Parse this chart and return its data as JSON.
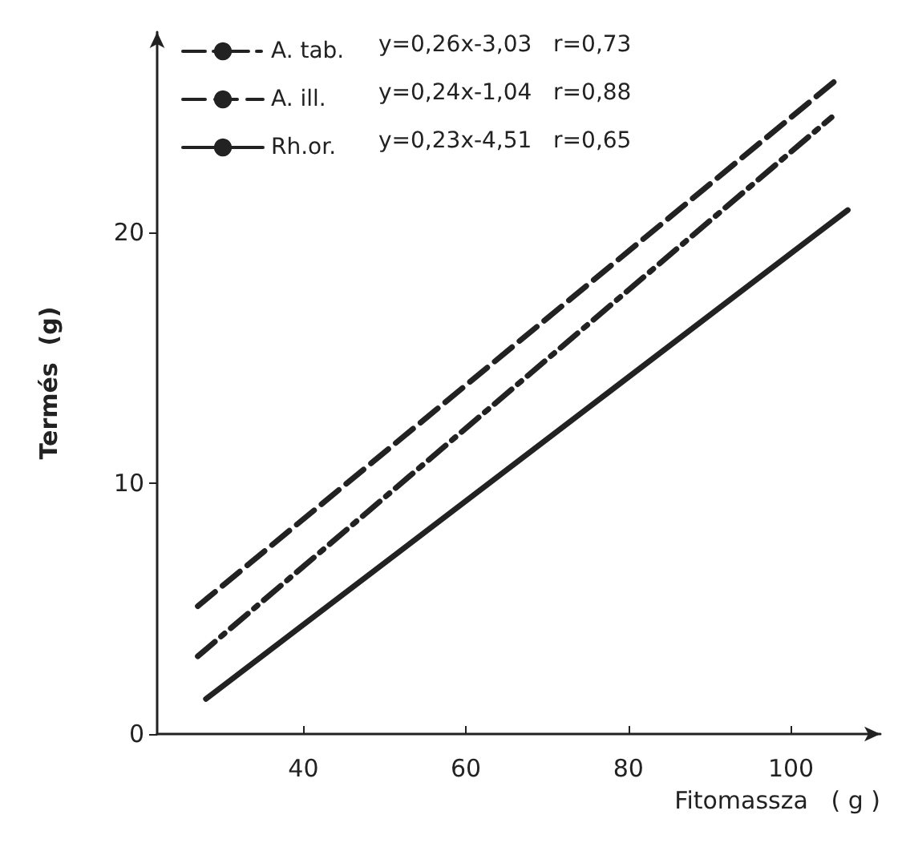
{
  "chart_data": {
    "type": "line",
    "xlabel": "Fitomassza   ( g )",
    "ylabel": "Termés  (g)",
    "xlim": [
      22,
      111
    ],
    "xticks": [
      40,
      60,
      80,
      100
    ],
    "ylim": [
      0,
      28
    ],
    "yticks": [
      0,
      10,
      20
    ],
    "grid": false,
    "legend": "top left",
    "marker": "none",
    "annotations": [
      "y=0,26x-3,03   r=0,73",
      "y=0,24x-1,04   r=0,88",
      "y=0,23x-4,51   r=0,65"
    ],
    "series": [
      {
        "name": "A. tab.",
        "color": "#222222",
        "line_style": "dashdot",
        "x": [
          27,
          105
        ],
        "values": [
          3.1,
          24.6
        ]
      },
      {
        "name": "A. ill.",
        "color": "#222222",
        "line_style": "dashed",
        "x": [
          27,
          106
        ],
        "values": [
          5.1,
          26.2
        ]
      },
      {
        "name": "Rh.or.",
        "color": "#222222",
        "line_style": "solid",
        "x": [
          28,
          107
        ],
        "values": [
          1.4,
          20.9
        ]
      }
    ]
  }
}
